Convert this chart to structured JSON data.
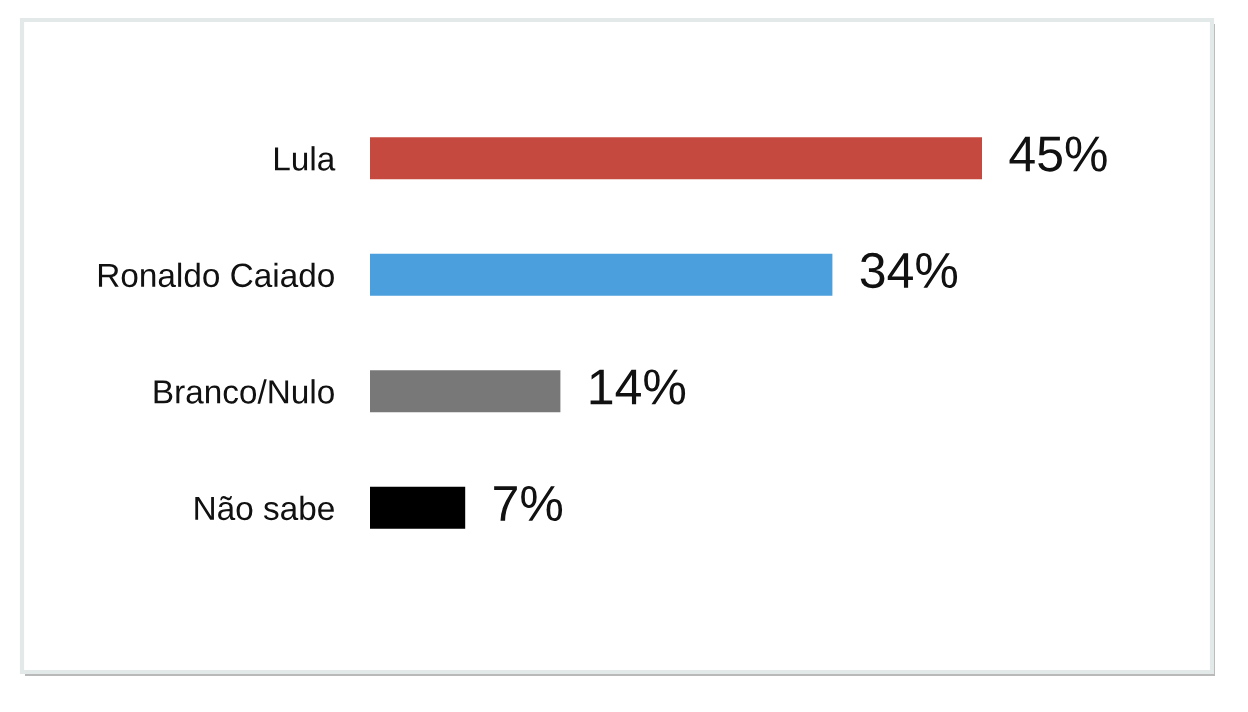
{
  "chart_data": {
    "type": "bar",
    "orientation": "horizontal",
    "categories": [
      "Lula",
      "Ronaldo Caiado",
      "Branco/Nulo",
      "Não sabe"
    ],
    "values": [
      45,
      34,
      14,
      7
    ],
    "colors": [
      "#c5493e",
      "#4b9fdc",
      "#787878",
      "#000000"
    ],
    "value_labels": [
      "45%",
      "34%",
      "14%",
      "7%"
    ],
    "tick_labels": "y"
  }
}
